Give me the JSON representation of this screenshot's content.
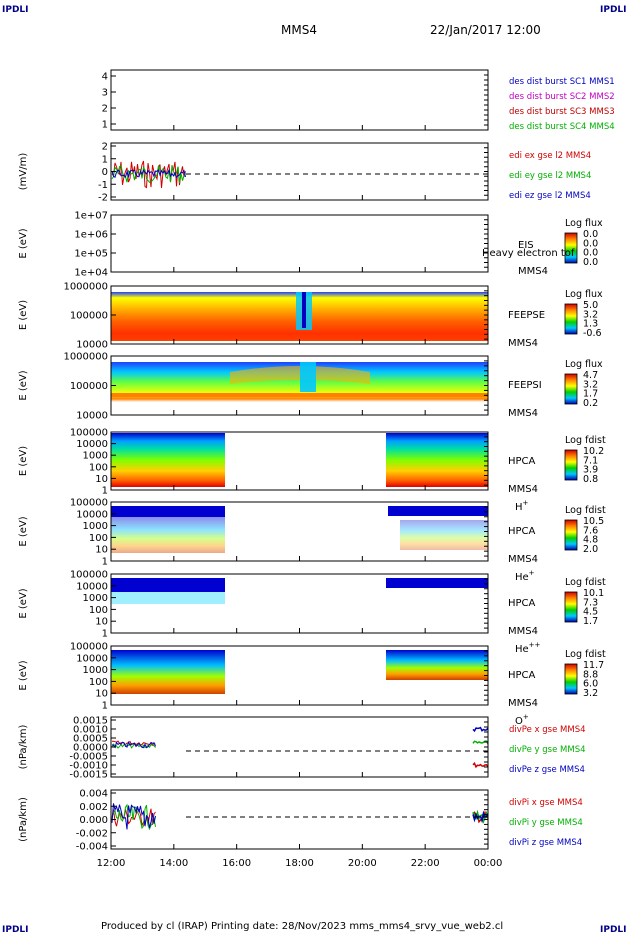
{
  "corner_label": "IPDLI",
  "header": {
    "mission": "MMS4",
    "date": "22/Jan/2017 12:00"
  },
  "footer": "Produced by cl (IRAP)   Printing date: 28/Nov/2023   mms_mms4_srvy_vue_web2.cl",
  "chart_data": {
    "type": "multi-panel time series",
    "x_tick_labels": [
      "12:00",
      "14:00",
      "16:00",
      "18:00",
      "20:00",
      "22:00",
      "00:00"
    ],
    "panels": [
      {
        "id": "p1",
        "type": "line",
        "yticks": [
          "1",
          "2",
          "3",
          "4"
        ],
        "legend": [
          {
            "text": "des dist burst SC1 MMS1",
            "color": "#0000c0"
          },
          {
            "text": "des dist burst SC2 MMS2",
            "color": "#c000c0"
          },
          {
            "text": "des dist burst SC3 MMS3",
            "color": "#c00000"
          },
          {
            "text": "des dist burst SC4 MMS4",
            "color": "#00b000"
          }
        ]
      },
      {
        "id": "p2",
        "type": "line",
        "ylabel": "(mV/m)",
        "yticks": [
          "-2",
          "-1",
          "0",
          "1",
          "2"
        ],
        "legend": [
          {
            "text": "edi ex gse l2 MMS4",
            "color": "#d00000"
          },
          {
            "text": "edi ey gse l2 MMS4",
            "color": "#00b000"
          },
          {
            "text": "edi ez gse l2 MMS4",
            "color": "#0000c0"
          }
        ]
      },
      {
        "id": "p3",
        "type": "heatmap",
        "ylabel": "E (eV)",
        "yticks": [
          "1e+04",
          "1e+05",
          "1e+06",
          "1e+07"
        ],
        "side": [
          "EIS",
          "MMS4"
        ],
        "overlay": "Heavy electron tof",
        "cb_title": "Log flux",
        "cb_ticks": [
          "0.0",
          "0.0",
          "0.0",
          "0.0"
        ]
      },
      {
        "id": "p4",
        "type": "heatmap",
        "ylabel": "E (eV)",
        "yticks": [
          "10000",
          "100000",
          "1000000"
        ],
        "side": [
          "FEEPSE",
          "MMS4"
        ],
        "cb_title": "Log flux",
        "cb_ticks": [
          "5.0",
          "3.2",
          "1.3",
          "-0.6"
        ]
      },
      {
        "id": "p5",
        "type": "heatmap",
        "ylabel": "E (eV)",
        "yticks": [
          "10000",
          "100000",
          "1000000"
        ],
        "side": [
          "FEEPSI",
          "MMS4"
        ],
        "cb_title": "Log flux",
        "cb_ticks": [
          "4.7",
          "3.2",
          "1.7",
          "0.2"
        ]
      },
      {
        "id": "p6",
        "type": "heatmap",
        "ylabel": "E (eV)",
        "yticks": [
          "1",
          "10",
          "100",
          "1000",
          "10000",
          "100000"
        ],
        "side": [
          "HPCA",
          "MMS4"
        ],
        "species": "H",
        "species_sup": "+",
        "cb_title": "Log fdist",
        "cb_ticks": [
          "10.2",
          "7.1",
          "3.9",
          "0.8"
        ]
      },
      {
        "id": "p7",
        "type": "heatmap",
        "ylabel": "E (eV)",
        "yticks": [
          "1",
          "10",
          "100",
          "1000",
          "10000",
          "100000"
        ],
        "side": [
          "HPCA",
          "MMS4"
        ],
        "species": "He",
        "species_sup": "+",
        "cb_title": "Log fdist",
        "cb_ticks": [
          "10.5",
          "7.6",
          "4.8",
          "2.0"
        ]
      },
      {
        "id": "p8",
        "type": "heatmap",
        "ylabel": "E (eV)",
        "yticks": [
          "1",
          "10",
          "100",
          "1000",
          "10000",
          "100000"
        ],
        "side": [
          "HPCA",
          "MMS4"
        ],
        "species": "He",
        "species_sup": "++",
        "cb_title": "Log fdist",
        "cb_ticks": [
          "10.1",
          "7.3",
          "4.5",
          "1.7"
        ]
      },
      {
        "id": "p9",
        "type": "heatmap",
        "ylabel": "E (eV)",
        "yticks": [
          "1",
          "10",
          "100",
          "1000",
          "10000",
          "100000"
        ],
        "side": [
          "HPCA",
          "MMS4"
        ],
        "species": "O",
        "species_sup": "+",
        "cb_title": "Log fdist",
        "cb_ticks": [
          "11.7",
          "8.8",
          "6.0",
          "3.2"
        ]
      },
      {
        "id": "p10",
        "type": "line",
        "ylabel": "(nPa/km)",
        "yticks": [
          "-0.0015",
          "-0.0010",
          "-0.0005",
          "0.0000",
          "0.0005",
          "0.0010",
          "0.0015"
        ],
        "legend": [
          {
            "text": "divPe x gse MMS4",
            "color": "#d00000"
          },
          {
            "text": "divPe y gse MMS4",
            "color": "#00b000"
          },
          {
            "text": "divPe z gse MMS4",
            "color": "#0000c0"
          }
        ]
      },
      {
        "id": "p11",
        "type": "line",
        "ylabel": "(nPa/km)",
        "yticks": [
          "-0.004",
          "-0.002",
          "0.000",
          "0.002",
          "0.004"
        ],
        "legend": [
          {
            "text": "divPi x gse MMS4",
            "color": "#d00000"
          },
          {
            "text": "divPi y gse MMS4",
            "color": "#00b000"
          },
          {
            "text": "divPi z gse MMS4",
            "color": "#0000c0"
          }
        ]
      }
    ]
  }
}
